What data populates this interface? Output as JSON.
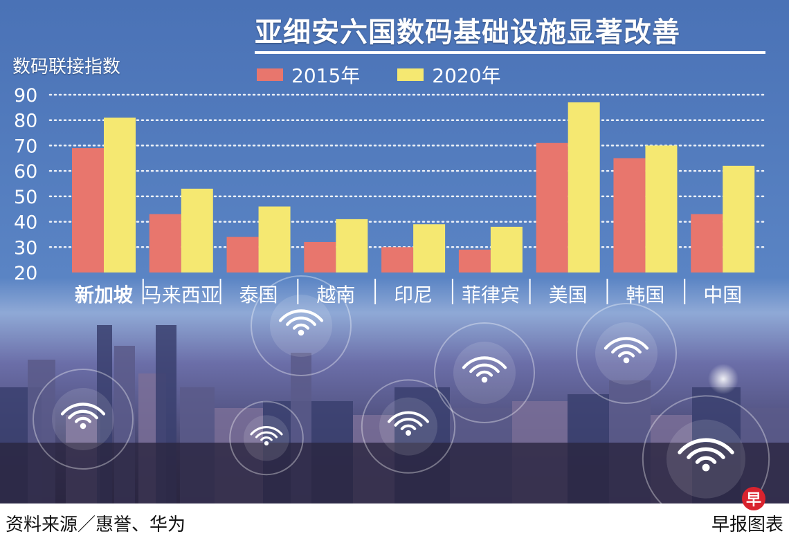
{
  "title": "亚细安六国数码基础设施显著改善",
  "source": "资料来源／惠誉、华为",
  "credit": "早报图表",
  "logo_text": "早",
  "colors": {
    "series_2015": "#e8766d",
    "series_2020": "#f5e871",
    "background_top": "#4a73b8",
    "gridline": "#ffffff",
    "text": "#ffffff"
  },
  "chart_data": {
    "type": "bar",
    "title": "亚细安六国数码基础设施显著改善",
    "ylabel": "数码联接指数",
    "xlabel": "",
    "categories": [
      "新加坡",
      "马来西亚",
      "泰国",
      "越南",
      "印尼",
      "菲律宾",
      "美国",
      "韩国",
      "中国"
    ],
    "series": [
      {
        "name": "2015年",
        "values": [
          69,
          43,
          34,
          32,
          30,
          29,
          71,
          65,
          43
        ]
      },
      {
        "name": "2020年",
        "values": [
          81,
          53,
          46,
          41,
          39,
          38,
          87,
          70,
          62
        ]
      }
    ],
    "ylim": [
      20,
      90
    ],
    "yticks": [
      20,
      30,
      40,
      50,
      60,
      70,
      80,
      90
    ],
    "grid": true,
    "legend_position": "top"
  }
}
